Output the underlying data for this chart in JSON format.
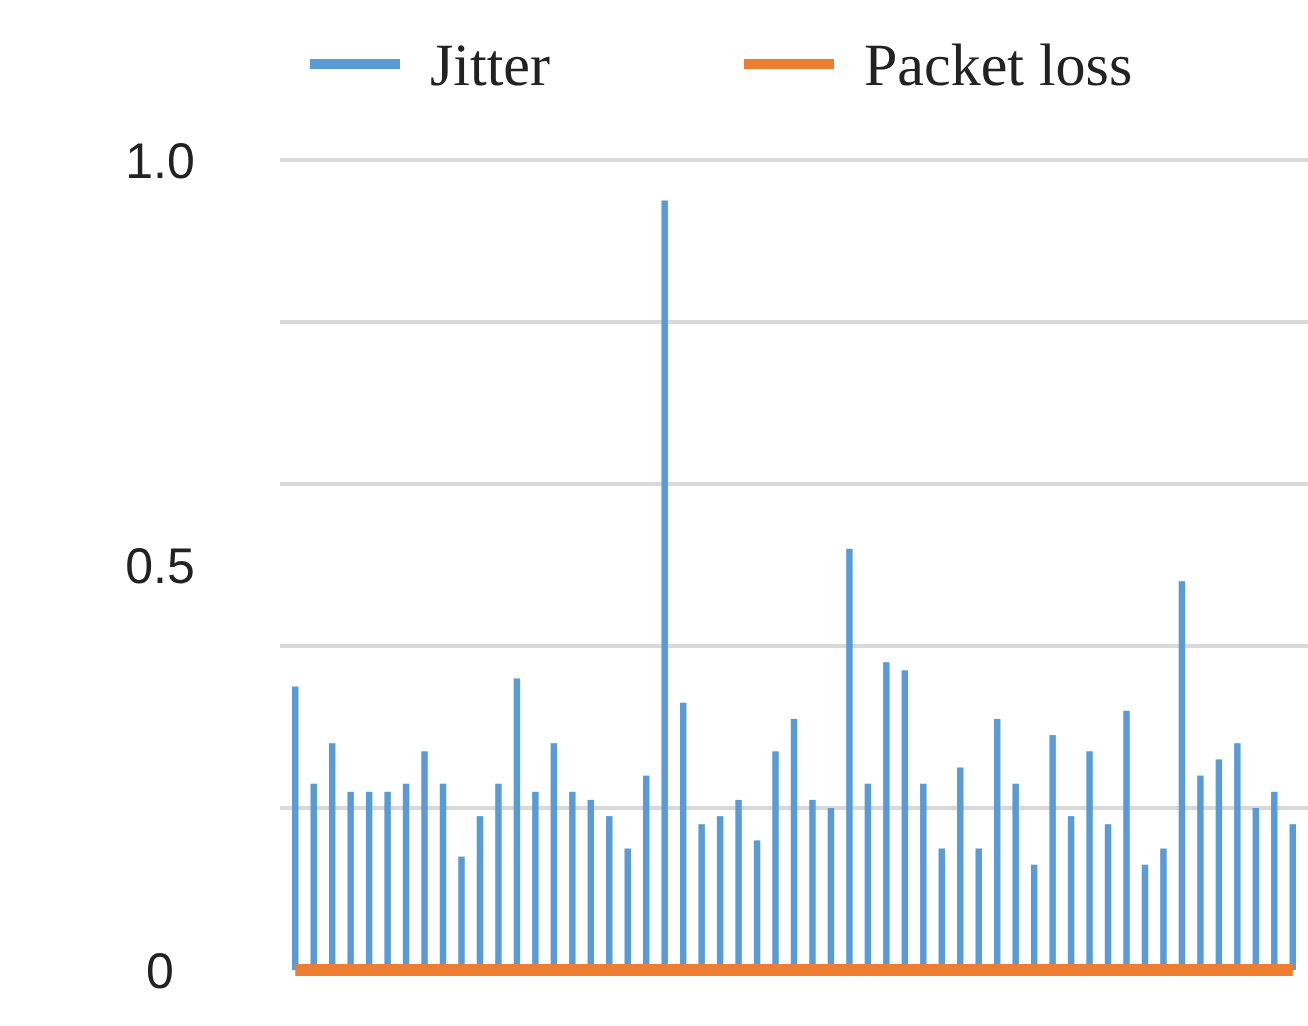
{
  "chart_data": {
    "type": "bar",
    "categories": [
      null,
      null,
      null,
      null,
      null,
      null,
      null,
      null,
      null,
      null,
      null,
      null,
      null,
      null,
      null,
      null,
      null,
      null,
      null,
      null,
      null,
      null,
      null,
      null,
      null,
      null,
      null,
      null,
      null,
      null,
      null,
      null,
      null,
      null,
      null,
      null,
      null,
      null,
      null,
      null,
      null,
      null,
      null,
      null,
      null,
      null,
      null,
      null,
      null,
      null,
      null,
      null,
      null,
      null,
      null
    ],
    "series": [
      {
        "name": "Jitter",
        "color": "#5b9bd5",
        "values": [
          0.35,
          0.23,
          0.28,
          0.22,
          0.22,
          0.22,
          0.23,
          0.27,
          0.23,
          0.14,
          0.19,
          0.23,
          0.36,
          0.22,
          0.28,
          0.22,
          0.21,
          0.19,
          0.15,
          0.24,
          0.95,
          0.33,
          0.18,
          0.19,
          0.21,
          0.16,
          0.27,
          0.31,
          0.21,
          0.2,
          0.52,
          0.23,
          0.38,
          0.37,
          0.23,
          0.15,
          0.25,
          0.15,
          0.31,
          0.23,
          0.13,
          0.29,
          0.19,
          0.27,
          0.18,
          0.32,
          0.13,
          0.15,
          0.48,
          0.24,
          0.26,
          0.28,
          0.2,
          0.22,
          0.18
        ]
      },
      {
        "name": "Packet loss",
        "color": "#ed7d31",
        "type": "line",
        "values": [
          0,
          0,
          0,
          0,
          0,
          0,
          0,
          0,
          0,
          0,
          0,
          0,
          0,
          0,
          0,
          0,
          0,
          0,
          0,
          0,
          0,
          0,
          0,
          0,
          0,
          0,
          0,
          0,
          0,
          0,
          0,
          0,
          0,
          0,
          0,
          0,
          0,
          0,
          0,
          0,
          0,
          0,
          0,
          0,
          0,
          0,
          0,
          0,
          0,
          0,
          0,
          0,
          0,
          0,
          0
        ]
      }
    ],
    "ylim": [
      0,
      1
    ],
    "yticks": [
      0,
      {
        "value": 0.2,
        "label": null
      },
      {
        "value": 0.4,
        "label": null
      },
      {
        "value": 0.5,
        "label": "0.5"
      },
      {
        "value": 0.6,
        "label": null
      },
      {
        "value": 0.8,
        "label": null
      },
      {
        "value": 1,
        "label": "1.0"
      }
    ],
    "grid": "y",
    "legend": "top",
    "marker": "none"
  }
}
